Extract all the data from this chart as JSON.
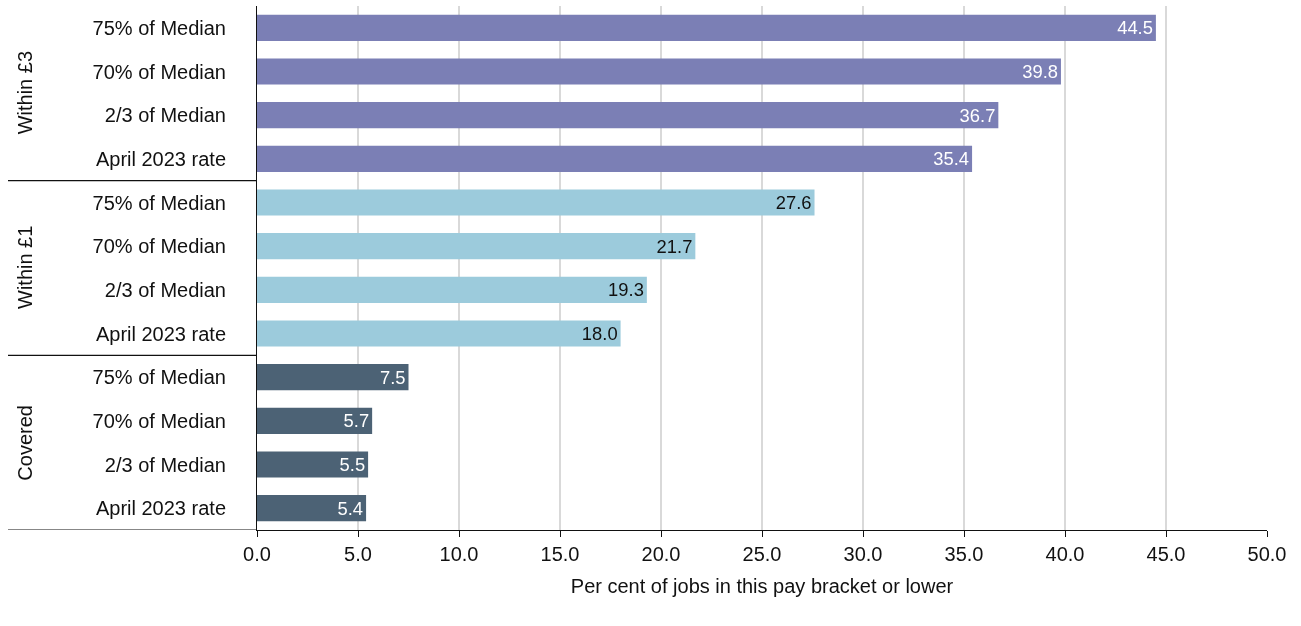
{
  "chart_data": {
    "type": "bar",
    "orientation": "horizontal",
    "xlabel": "Per cent of jobs in this pay bracket or lower",
    "categories": [
      "75% of Median",
      "70% of Median",
      "2/3 of Median",
      "April 2023 rate",
      "75% of Median",
      "70% of Median",
      "2/3 of Median",
      "April 2023 rate",
      "75% of Median",
      "70% of Median",
      "2/3 of Median",
      "April 2023 rate"
    ],
    "series": [
      {
        "color": "#7b7fb5",
        "values": [
          44.5,
          39.8,
          36.7,
          35.4,
          null,
          null,
          null,
          null,
          null,
          null,
          null,
          null
        ],
        "value_labels": [
          "44.5",
          "39.8",
          "36.7",
          "35.4",
          null,
          null,
          null,
          null,
          null,
          null,
          null,
          null
        ]
      },
      {
        "color": "#9ccbdc",
        "values": [
          null,
          null,
          null,
          null,
          27.6,
          21.7,
          19.3,
          18.0,
          null,
          null,
          null,
          null
        ],
        "value_labels": [
          null,
          null,
          null,
          null,
          "27.6",
          "21.7",
          "19.3",
          "18.0",
          null,
          null,
          null,
          null
        ]
      },
      {
        "color": "#4c6275",
        "values": [
          null,
          null,
          null,
          null,
          null,
          null,
          null,
          null,
          7.5,
          5.7,
          5.5,
          5.4
        ],
        "value_labels": [
          null,
          null,
          null,
          null,
          null,
          null,
          null,
          null,
          "7.5",
          "5.7",
          "5.5",
          "5.4"
        ]
      }
    ],
    "annotations": [
      "Within £3",
      "Within £1",
      "Covered"
    ],
    "xlim": [
      0,
      50
    ],
    "xticks": [
      {
        "value": 0,
        "label": "0.0"
      },
      {
        "value": 5,
        "label": "5.0"
      },
      {
        "value": 10,
        "label": "10.0"
      },
      {
        "value": 15,
        "label": "15.0"
      },
      {
        "value": 20,
        "label": "20.0"
      },
      {
        "value": 25,
        "label": "25.0"
      },
      {
        "value": 30,
        "label": "30.0"
      },
      {
        "value": 35,
        "label": "35.0"
      },
      {
        "value": 40,
        "label": "40.0"
      },
      {
        "value": 45,
        "label": "45.0"
      },
      {
        "value": 50,
        "label": "50.0"
      }
    ],
    "grid": "x",
    "legend": false
  }
}
